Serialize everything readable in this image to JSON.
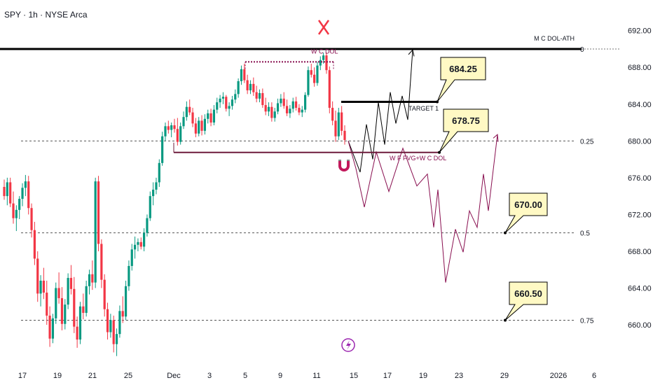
{
  "header": {
    "symbol_line": "SPY · 1h · NYSE Arca"
  },
  "colors": {
    "up": "#089981",
    "down": "#f23645",
    "projection_up": "#000000",
    "projection_down": "#880e4f",
    "callout_fill": "#fff9c4",
    "marker_red": "#f23645",
    "purple": "#9c27b0"
  },
  "icons": {
    "top_marker": "x-mark-icon",
    "magnet": "magnet-icon",
    "flash": "lightning-icon"
  },
  "chart_data": {
    "type": "candlestick",
    "y_axis": {
      "min": 656.5,
      "max": 693.5,
      "ticks": [
        "692.00",
        "688.00",
        "684.00",
        "680.00",
        "676.00",
        "672.00",
        "668.00",
        "664.00",
        "660.00"
      ],
      "tick_values": [
        692,
        688,
        684,
        680,
        676,
        672,
        668,
        664,
        660
      ]
    },
    "x_axis": {
      "labels": [
        "17",
        "19",
        "21",
        "25",
        "Dec",
        "3",
        "5",
        "9",
        "11",
        "15",
        "17",
        "19",
        "23",
        "29",
        "2026",
        "6"
      ]
    },
    "levels": [
      {
        "label": "0",
        "value": 690.0,
        "style": "solid-thick"
      },
      {
        "label": "0.25",
        "value": 680.0,
        "style": "dashed"
      },
      {
        "label": "0.5",
        "value": 670.0,
        "style": "dashed"
      },
      {
        "label": "0.75",
        "value": 660.5,
        "style": "dashed"
      }
    ],
    "annotations": {
      "ath_label": "M C DOL-ATH",
      "wc_dol": "W C DOL",
      "target1": "TARGET 1",
      "fvg": "W F FVG+W C DOL",
      "callouts": [
        "684.25",
        "678.75",
        "670.00",
        "660.50"
      ]
    },
    "candles": [
      [
        675.0,
        675.8,
        673.6,
        674.0
      ],
      [
        674.0,
        676.0,
        673.0,
        675.5
      ],
      [
        675.5,
        676.0,
        672.8,
        673.2
      ],
      [
        673.2,
        674.5,
        671.0,
        671.6
      ],
      [
        671.6,
        673.0,
        670.2,
        672.5
      ],
      [
        672.5,
        674.0,
        671.5,
        673.7
      ],
      [
        673.7,
        675.4,
        672.9,
        674.9
      ],
      [
        674.9,
        676.3,
        674.0,
        675.6
      ],
      [
        675.6,
        676.2,
        672.0,
        672.7
      ],
      [
        672.7,
        673.2,
        669.5,
        670.3
      ],
      [
        670.3,
        671.2,
        666.5,
        667.2
      ],
      [
        667.2,
        668.0,
        662.5,
        663.4
      ],
      [
        663.4,
        665.4,
        662.0,
        664.8
      ],
      [
        664.8,
        666.2,
        662.8,
        663.5
      ],
      [
        663.5,
        664.8,
        660.0,
        661.0
      ],
      [
        661.0,
        662.0,
        657.6,
        658.5
      ],
      [
        658.5,
        661.2,
        658.0,
        660.7
      ],
      [
        660.7,
        664.6,
        660.1,
        664.0
      ],
      [
        664.0,
        665.7,
        662.3,
        662.9
      ],
      [
        662.9,
        664.1,
        659.4,
        660.1
      ],
      [
        660.1,
        662.8,
        659.5,
        662.2
      ],
      [
        662.2,
        665.6,
        661.7,
        665.1
      ],
      [
        665.1,
        666.5,
        663.3,
        663.9
      ],
      [
        663.9,
        665.2,
        659.1,
        659.8
      ],
      [
        659.8,
        660.9,
        657.5,
        658.4
      ],
      [
        658.4,
        662.5,
        657.9,
        662.0
      ],
      [
        662.0,
        663.4,
        660.6,
        661.3
      ],
      [
        661.3,
        664.8,
        660.9,
        664.2
      ],
      [
        664.2,
        666.0,
        663.3,
        665.5
      ],
      [
        665.5,
        667.0,
        663.8,
        664.6
      ],
      [
        664.6,
        676.0,
        664.0,
        675.6
      ],
      [
        675.6,
        676.2,
        668.0,
        668.8
      ],
      [
        668.8,
        669.3,
        664.0,
        664.9
      ],
      [
        664.9,
        665.5,
        660.9,
        661.7
      ],
      [
        661.7,
        662.4,
        658.4,
        659.2
      ],
      [
        659.2,
        661.2,
        658.6,
        660.5
      ],
      [
        660.5,
        661.0,
        657.0,
        657.9
      ],
      [
        657.9,
        659.6,
        656.6,
        659.0
      ],
      [
        659.0,
        662.1,
        658.6,
        661.5
      ],
      [
        661.5,
        663.1,
        660.2,
        660.9
      ],
      [
        660.9,
        664.8,
        660.5,
        664.2
      ],
      [
        664.2,
        667.0,
        663.7,
        666.4
      ],
      [
        666.4,
        668.8,
        665.9,
        668.2
      ],
      [
        668.2,
        669.6,
        667.2,
        668.7
      ],
      [
        668.7,
        669.4,
        668.0,
        669.0
      ],
      [
        669.0,
        669.5,
        668.2,
        668.5
      ],
      [
        668.5,
        670.5,
        668.0,
        670.0
      ],
      [
        670.0,
        672.0,
        669.6,
        671.6
      ],
      [
        671.6,
        674.5,
        671.3,
        674.0
      ],
      [
        674.0,
        675.5,
        673.0,
        674.7
      ],
      [
        674.7,
        676.0,
        674.2,
        675.5
      ],
      [
        675.5,
        678.0,
        675.0,
        677.6
      ],
      [
        677.6,
        681.0,
        677.3,
        680.5
      ],
      [
        680.5,
        682.0,
        680.0,
        681.6
      ],
      [
        681.6,
        682.2,
        680.8,
        681.2
      ],
      [
        681.2,
        682.0,
        680.4,
        681.7
      ],
      [
        681.7,
        682.4,
        680.9,
        681.3
      ],
      [
        681.3,
        682.5,
        679.5,
        679.9
      ],
      [
        679.9,
        682.0,
        679.6,
        681.6
      ],
      [
        681.6,
        683.2,
        681.3,
        682.6
      ],
      [
        682.6,
        684.3,
        682.2,
        683.7
      ],
      [
        683.7,
        684.5,
        682.8,
        683.1
      ],
      [
        683.1,
        683.6,
        681.5,
        681.9
      ],
      [
        681.9,
        682.5,
        680.4,
        680.8
      ],
      [
        680.8,
        682.6,
        680.5,
        682.2
      ],
      [
        682.2,
        682.8,
        680.6,
        681.1
      ],
      [
        681.1,
        682.9,
        680.7,
        682.4
      ],
      [
        682.4,
        683.4,
        681.9,
        683.0
      ],
      [
        683.0,
        683.5,
        681.6,
        682.0
      ],
      [
        682.0,
        683.9,
        681.7,
        683.4
      ],
      [
        683.4,
        684.7,
        683.0,
        684.2
      ],
      [
        684.2,
        685.0,
        683.6,
        684.6
      ],
      [
        684.6,
        685.3,
        684.0,
        684.8
      ],
      [
        684.8,
        685.0,
        683.2,
        683.5
      ],
      [
        683.5,
        684.2,
        682.7,
        683.8
      ],
      [
        683.8,
        684.9,
        683.4,
        684.5
      ],
      [
        684.5,
        685.6,
        684.1,
        685.1
      ],
      [
        685.1,
        686.8,
        684.7,
        686.5
      ],
      [
        686.5,
        688.2,
        686.1,
        687.8
      ],
      [
        687.8,
        688.4,
        686.3,
        686.6
      ],
      [
        686.6,
        687.2,
        685.1,
        685.5
      ],
      [
        685.5,
        686.6,
        685.1,
        686.2
      ],
      [
        686.2,
        686.9,
        684.9,
        685.3
      ],
      [
        685.3,
        686.0,
        684.2,
        684.6
      ],
      [
        684.6,
        685.6,
        684.2,
        685.2
      ],
      [
        685.2,
        685.7,
        683.6,
        683.9
      ],
      [
        683.9,
        684.7,
        682.8,
        683.2
      ],
      [
        683.2,
        684.2,
        682.7,
        683.7
      ],
      [
        683.7,
        684.2,
        682.1,
        682.5
      ],
      [
        682.5,
        683.6,
        682.1,
        683.2
      ],
      [
        683.2,
        684.6,
        682.9,
        684.1
      ],
      [
        684.1,
        685.1,
        683.7,
        684.6
      ],
      [
        684.6,
        685.3,
        683.5,
        683.8
      ],
      [
        683.8,
        684.5,
        682.7,
        683.0
      ],
      [
        683.0,
        683.9,
        682.5,
        683.5
      ],
      [
        683.5,
        684.7,
        683.1,
        684.3
      ],
      [
        684.3,
        684.8,
        683.3,
        683.6
      ],
      [
        683.6,
        684.0,
        682.8,
        683.1
      ],
      [
        683.1,
        683.8,
        682.6,
        683.4
      ],
      [
        683.4,
        685.3,
        683.1,
        685.0
      ],
      [
        685.0,
        688.1,
        684.8,
        687.7
      ],
      [
        687.7,
        688.4,
        686.9,
        687.2
      ],
      [
        687.2,
        688.0,
        685.9,
        686.3
      ],
      [
        686.3,
        688.6,
        686.0,
        688.2
      ],
      [
        688.2,
        689.2,
        687.7,
        688.8
      ],
      [
        688.8,
        689.6,
        688.4,
        689.3
      ],
      [
        689.3,
        689.6,
        687.3,
        687.7
      ],
      [
        687.7,
        688.1,
        683.0,
        683.6
      ],
      [
        683.6,
        684.3,
        681.7,
        682.2
      ],
      [
        682.2,
        683.3,
        679.9,
        680.5
      ],
      [
        680.5,
        683.6,
        680.1,
        683.1
      ],
      [
        683.1,
        683.8,
        680.6,
        681.1
      ],
      [
        681.1,
        681.7,
        679.6,
        680.1
      ]
    ],
    "projection_up": [
      [
        684.3,
        680.0
      ],
      [
        690.0,
        680.0
      ]
    ],
    "projection_up_points": [
      680.0,
      676.6,
      681.8,
      678.0,
      684.2,
      679.6,
      685.3,
      681.9,
      684.9,
      682.3,
      689.9
    ],
    "projection_down_points": [
      680.0,
      677.0,
      672.8,
      678.8,
      674.5,
      679.2,
      675.1,
      676.4,
      670.6,
      674.7,
      664.6,
      670.4,
      667.9,
      672.4,
      670.6,
      676.4,
      672.4,
      680.7
    ]
  }
}
